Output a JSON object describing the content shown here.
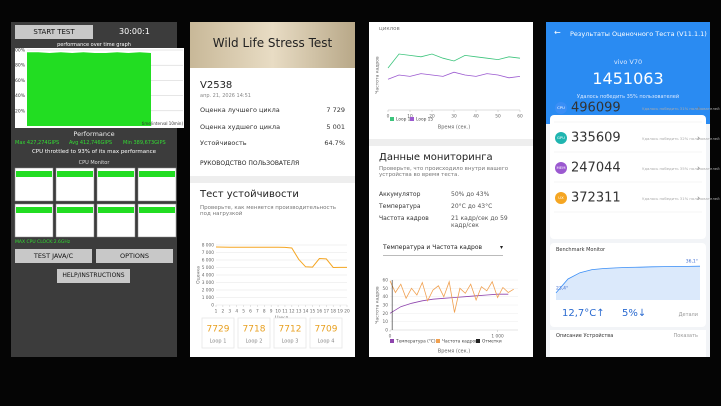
{
  "cpu_app": {
    "start_button": "START TEST",
    "timer": "30:00:1",
    "graph_title": "performance over time graph",
    "perf_chart": {
      "type": "area",
      "values": [
        97,
        97,
        96,
        97,
        96,
        97,
        96,
        96,
        97,
        96,
        97,
        96
      ],
      "ylim": [
        0,
        100
      ],
      "yticks": [
        {
          "value": 100,
          "label": "100%"
        },
        {
          "value": 80,
          "label": "80%"
        },
        {
          "value": 60,
          "label": "60%"
        },
        {
          "value": 40,
          "label": "40%"
        },
        {
          "value": 20,
          "label": "20%"
        }
      ],
      "color": "#22dd22",
      "grid": true
    },
    "x_label": "time(interval 10min)",
    "section": "Performance",
    "stats": [
      "Max 427,274GIPS",
      "Avg 412,746GIPS",
      "Min 389,673GIPS"
    ],
    "throttle_note": "CPU throttled to 93% of its max performance",
    "cpu_monitor_title": "CPU Monitor",
    "max_clock": "MAX CPU CLOCK:2.6GHz",
    "buttons": [
      "TEST JAVA/C",
      "OPTIONS"
    ],
    "help": "HELP/INSTRUCTIONS"
  },
  "stress": {
    "title": "Wild Life Stress Test",
    "device": "V2538",
    "date": "апр. 21, 2026 14:51",
    "rows": [
      [
        "Оценка лучшего цикла",
        "7 729"
      ],
      [
        "Оценка худшего цикла",
        "5 001"
      ],
      [
        "Устойчивость",
        "64.7%"
      ]
    ],
    "guide_link": "РУКОВОДСТВО ПОЛЬЗОВАТЕЛЯ",
    "section": "Тест устойчивости",
    "description": "Проверьте, как меняется производительность под нагрузкой",
    "chart": {
      "type": "line",
      "x": [
        1,
        2,
        3,
        4,
        5,
        6,
        7,
        8,
        9,
        10,
        11,
        12,
        13,
        14,
        15,
        16,
        17,
        18,
        19,
        20
      ],
      "values": [
        7729,
        7718,
        7712,
        7709,
        7700,
        7705,
        7698,
        7702,
        7690,
        7695,
        7680,
        7600,
        6100,
        5100,
        5050,
        6200,
        6150,
        5001,
        5020,
        5010
      ],
      "xlim": [
        1,
        20
      ],
      "ylim": [
        0,
        8000
      ],
      "xticks": [
        1,
        2,
        3,
        4,
        5,
        6,
        7,
        8,
        9,
        10,
        11,
        12,
        13,
        14,
        15,
        16,
        17,
        18,
        19,
        20
      ],
      "yticks": [
        0,
        {
          "value": 1000,
          "label": "1 000"
        },
        {
          "value": 2000,
          "label": "2 000"
        },
        {
          "value": 3000,
          "label": "3 000"
        },
        {
          "value": 4000,
          "label": "4 000"
        },
        {
          "value": 5000,
          "label": "5 000"
        },
        {
          "value": 6000,
          "label": "6 000"
        },
        {
          "value": 7000,
          "label": "7 000"
        },
        {
          "value": 8000,
          "label": "8 000"
        }
      ],
      "x_label": "Цикл",
      "y_label": "Оценка",
      "color": "#f5a623",
      "grid": true
    },
    "loops": [
      {
        "score": "7729",
        "label": "Loop 1"
      },
      {
        "score": "7718",
        "label": "Loop 2"
      },
      {
        "score": "7712",
        "label": "Loop 3"
      },
      {
        "score": "7709",
        "label": "Loop 4"
      }
    ]
  },
  "monitor": {
    "top_text": "циклов",
    "fps_chart": {
      "type": "line",
      "x": [
        0,
        5,
        10,
        15,
        20,
        25,
        30,
        35,
        40,
        45,
        50,
        55,
        60
      ],
      "xlim": [
        0,
        60
      ],
      "ylim": [
        20,
        70
      ],
      "xticks": [
        0,
        10,
        20,
        30,
        40,
        50,
        60
      ],
      "y_label": "Частота кадров",
      "x_label": "Время (сек.)",
      "series": [
        {
          "name": "Loop 1",
          "color": "#3cc47c",
          "values": [
            50,
            60,
            59,
            58,
            60,
            57,
            55,
            59,
            58,
            57,
            56,
            58,
            57
          ]
        },
        {
          "name": "Loop 15",
          "color": "#9b59d0",
          "values": [
            42,
            45,
            44,
            46,
            45,
            44,
            47,
            45,
            44,
            46,
            45,
            43,
            44
          ]
        }
      ]
    },
    "section": "Данные мониторинга",
    "description": "Проверьте, что происходило внутри вашего устройства во время теста.",
    "rows": [
      [
        "Аккумулятор",
        "50% до 43%"
      ],
      [
        "Температура",
        "20°C до 43°C"
      ],
      [
        "Частота кадров",
        "21 кадр/сек до 59 кадр/сек"
      ]
    ],
    "dropdown": "Температура и Частота кадров",
    "combo_chart": {
      "type": "line",
      "xlim": [
        0,
        1190
      ],
      "ylim": [
        0,
        60
      ],
      "xticks": [
        0,
        {
          "value": 1000,
          "label": "1 000"
        }
      ],
      "yticks": [
        0,
        10,
        20,
        30,
        40,
        50,
        60
      ],
      "y_label": "Частота кадров",
      "x_label": "Время (сек.)",
      "series": [
        {
          "name": "Температура (°C)",
          "color": "#8e44ad",
          "x": [
            0,
            100,
            200,
            300,
            400,
            500,
            600,
            700,
            800,
            900,
            1000,
            1100
          ],
          "values": [
            20,
            28,
            32,
            35,
            37,
            38,
            39,
            40,
            41,
            42,
            43,
            43
          ]
        },
        {
          "name": "Частота кадров",
          "color": "#f0a050",
          "x": [
            0,
            50,
            100,
            150,
            200,
            250,
            300,
            350,
            400,
            450,
            500,
            550,
            600,
            650,
            700,
            750,
            800,
            850,
            900,
            950,
            1000,
            1050,
            1100,
            1150
          ],
          "values": [
            59,
            45,
            55,
            38,
            50,
            42,
            57,
            35,
            48,
            53,
            40,
            58,
            21,
            50,
            44,
            55,
            36,
            52,
            47,
            58,
            39,
            51,
            45,
            49
          ]
        },
        {
          "name": "Отметки",
          "color": "#222222",
          "x": [
            20
          ],
          "values": [
            60
          ]
        }
      ]
    }
  },
  "antutu": {
    "title": "Результаты Оценочного Теста (V11.1.1)",
    "device": "vivo V70",
    "score": "1451063",
    "score_note": "Удалось победить 35% пользователей",
    "subs": [
      {
        "tag": "CPU",
        "score": "496099",
        "note": "Удалось победить 31% пользователей",
        "color": "#3a8ef6"
      },
      {
        "tag": "GPU",
        "score": "335609",
        "note": "Удалось победить 32% пользователей",
        "color": "#20b5b0"
      },
      {
        "tag": "MEM",
        "score": "247044",
        "note": "Удалось победить 35% пользователей",
        "color": "#9b59d0"
      },
      {
        "tag": "UX",
        "score": "372311",
        "note": "Удалось победить 31% пользователей",
        "color": "#f5a623"
      }
    ],
    "monitor_title": "Benchmark Monitor",
    "temp_chart": {
      "type": "area",
      "values": [
        23.4,
        30,
        33,
        34.5,
        35,
        35.3,
        35.5,
        35.6,
        35.8,
        35.9,
        36,
        36,
        36.1
      ],
      "value_labels": [
        "23,4°",
        null,
        null,
        null,
        null,
        null,
        null,
        null,
        null,
        null,
        null,
        null,
        "36,1°"
      ],
      "ylim": [
        20,
        40
      ],
      "color": "#3a8ef6"
    },
    "temp_delta": "12,7°C↑",
    "battery_delta": "5%↓",
    "details": "Детали",
    "device_section": "Описание Устройства",
    "show": "Показать"
  }
}
